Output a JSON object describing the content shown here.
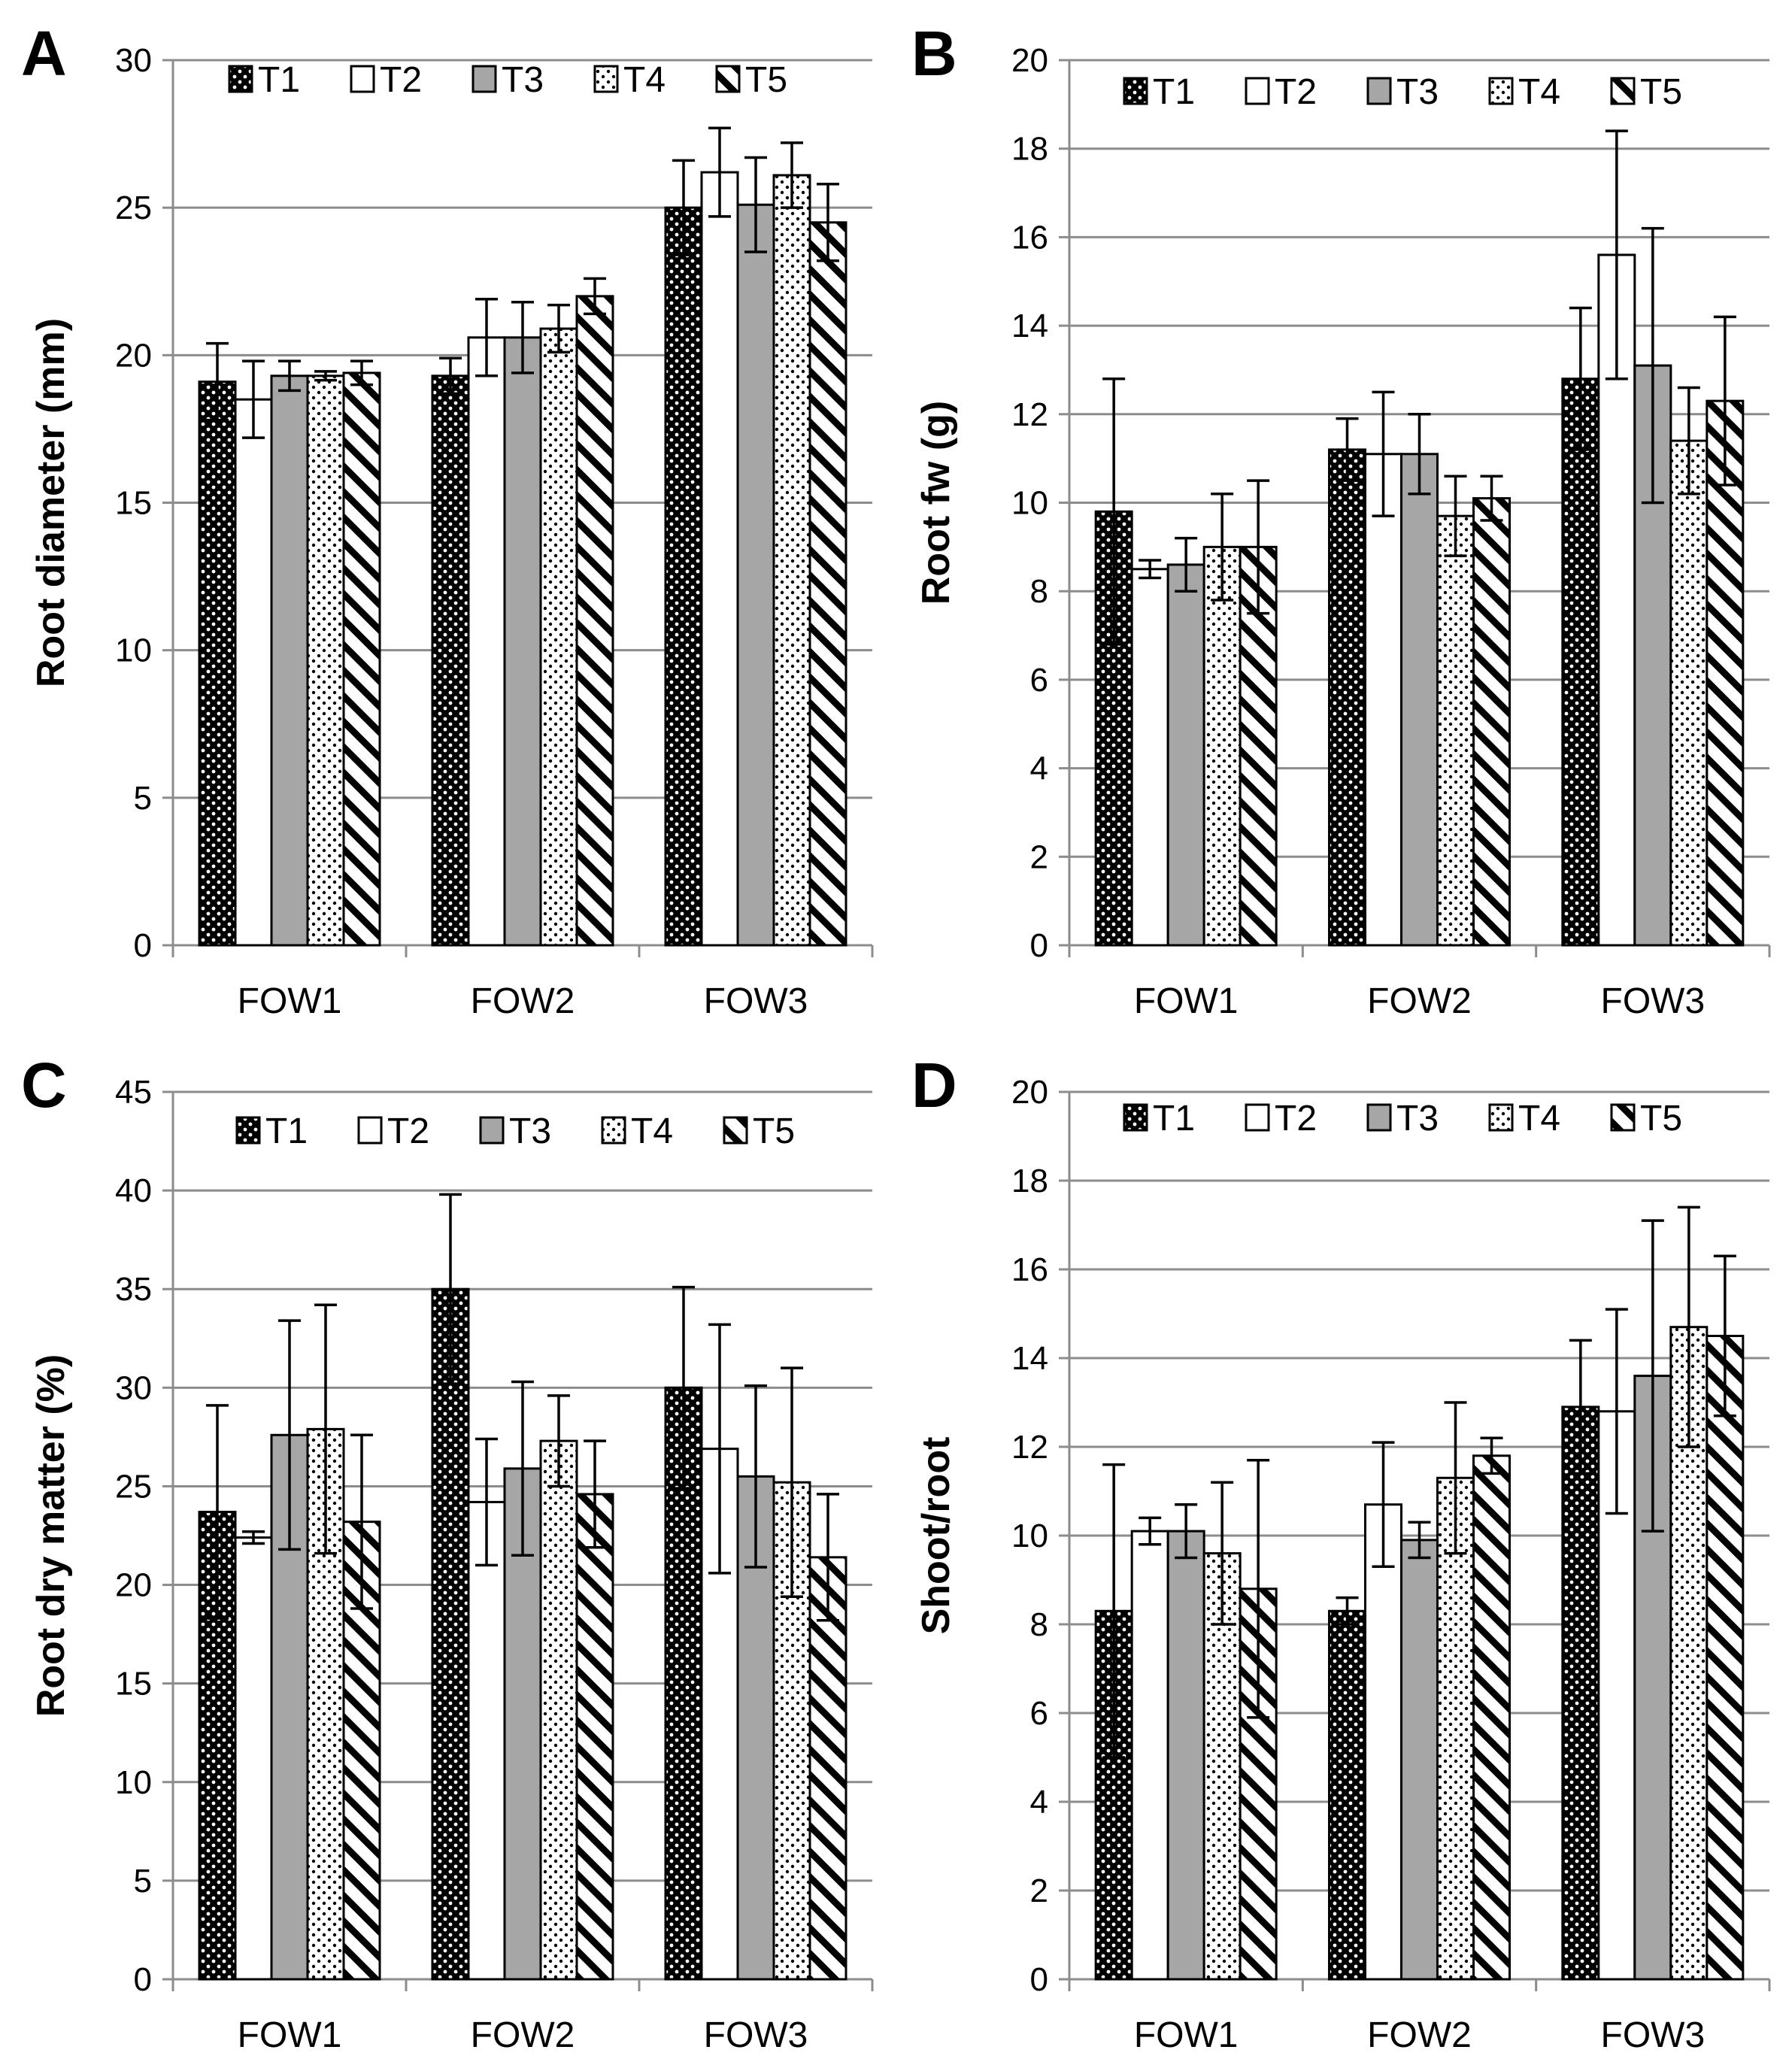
{
  "figure": {
    "series_names": [
      "T1",
      "T2",
      "T3",
      "T4",
      "T5"
    ],
    "patterns": [
      "dots-dark",
      "white",
      "gray",
      "dots-light",
      "diagonal"
    ],
    "colors": {
      "dark": "#000000",
      "gray": "#a6a6a6",
      "white": "#ffffff",
      "grid": "#8c8c8c"
    }
  },
  "chart_data": [
    {
      "panel": "A",
      "type": "bar",
      "title": "",
      "xlabel": "",
      "ylabel": "Root diameter (mm)",
      "ylim": [
        0,
        30
      ],
      "yticks": [
        0,
        5,
        10,
        15,
        20,
        25,
        30
      ],
      "categories": [
        "FOW1",
        "FOW2",
        "FOW3"
      ],
      "grid": true,
      "legend": "top",
      "series": [
        {
          "name": "T1",
          "values": [
            19.1,
            19.3,
            25.0
          ],
          "errors": [
            1.3,
            0.6,
            1.6
          ]
        },
        {
          "name": "T2",
          "values": [
            18.5,
            20.6,
            26.2
          ],
          "errors": [
            1.3,
            1.3,
            1.5
          ]
        },
        {
          "name": "T3",
          "values": [
            19.3,
            20.6,
            25.1
          ],
          "errors": [
            0.5,
            1.2,
            1.6
          ]
        },
        {
          "name": "T4",
          "values": [
            19.3,
            20.9,
            26.1
          ],
          "errors": [
            0.15,
            0.8,
            1.1
          ]
        },
        {
          "name": "T5",
          "values": [
            19.4,
            22.0,
            24.5
          ],
          "errors": [
            0.4,
            0.6,
            1.3
          ]
        }
      ]
    },
    {
      "panel": "B",
      "type": "bar",
      "title": "",
      "xlabel": "",
      "ylabel": "Root fw (g)",
      "ylim": [
        0,
        20
      ],
      "yticks": [
        0,
        2,
        4,
        6,
        8,
        10,
        12,
        14,
        16,
        18,
        20
      ],
      "categories": [
        "FOW1",
        "FOW2",
        "FOW3"
      ],
      "grid": true,
      "legend": "top",
      "series": [
        {
          "name": "T1",
          "values": [
            9.8,
            11.2,
            12.8
          ],
          "errors": [
            3.0,
            0.7,
            1.6
          ]
        },
        {
          "name": "T2",
          "values": [
            8.5,
            11.1,
            15.6
          ],
          "errors": [
            0.2,
            1.4,
            2.8
          ]
        },
        {
          "name": "T3",
          "values": [
            8.6,
            11.1,
            13.1
          ],
          "errors": [
            0.6,
            0.9,
            3.1
          ]
        },
        {
          "name": "T4",
          "values": [
            9.0,
            9.7,
            11.4
          ],
          "errors": [
            1.2,
            0.9,
            1.2
          ]
        },
        {
          "name": "T5",
          "values": [
            9.0,
            10.1,
            12.3
          ],
          "errors": [
            1.5,
            0.5,
            1.9
          ]
        }
      ]
    },
    {
      "panel": "C",
      "type": "bar",
      "title": "",
      "xlabel": "",
      "ylabel": "Root dry matter (%)",
      "ylim": [
        0,
        45
      ],
      "yticks": [
        0,
        5,
        10,
        15,
        20,
        25,
        30,
        35,
        40,
        45
      ],
      "categories": [
        "FOW1",
        "FOW2",
        "FOW3"
      ],
      "grid": true,
      "legend": "top",
      "series": [
        {
          "name": "T1",
          "values": [
            23.7,
            35.0,
            30.0
          ],
          "errors": [
            5.4,
            4.8,
            5.1
          ]
        },
        {
          "name": "T2",
          "values": [
            22.4,
            24.2,
            26.9
          ],
          "errors": [
            0.3,
            3.2,
            6.3
          ]
        },
        {
          "name": "T3",
          "values": [
            27.6,
            25.9,
            25.5
          ],
          "errors": [
            5.8,
            4.4,
            4.6
          ]
        },
        {
          "name": "T4",
          "values": [
            27.9,
            27.3,
            25.2
          ],
          "errors": [
            6.3,
            2.3,
            5.8
          ]
        },
        {
          "name": "T5",
          "values": [
            23.2,
            24.6,
            21.4
          ],
          "errors": [
            4.4,
            2.7,
            3.2
          ]
        }
      ]
    },
    {
      "panel": "D",
      "type": "bar",
      "title": "",
      "xlabel": "",
      "ylabel": "Shoot/root",
      "ylim": [
        0,
        20
      ],
      "yticks": [
        0,
        2,
        4,
        6,
        8,
        10,
        12,
        14,
        16,
        18,
        20
      ],
      "categories": [
        "FOW1",
        "FOW2",
        "FOW3"
      ],
      "grid": true,
      "legend": "top",
      "series": [
        {
          "name": "T1",
          "values": [
            8.3,
            8.3,
            12.9
          ],
          "errors": [
            3.3,
            0.3,
            1.5
          ]
        },
        {
          "name": "T2",
          "values": [
            10.1,
            10.7,
            12.8
          ],
          "errors": [
            0.3,
            1.4,
            2.3
          ]
        },
        {
          "name": "T3",
          "values": [
            10.1,
            9.9,
            13.6
          ],
          "errors": [
            0.6,
            0.4,
            3.5
          ]
        },
        {
          "name": "T4",
          "values": [
            9.6,
            11.3,
            14.7
          ],
          "errors": [
            1.6,
            1.7,
            2.7
          ]
        },
        {
          "name": "T5",
          "values": [
            8.8,
            11.8,
            14.5
          ],
          "errors": [
            2.9,
            0.4,
            1.8
          ]
        }
      ]
    }
  ]
}
